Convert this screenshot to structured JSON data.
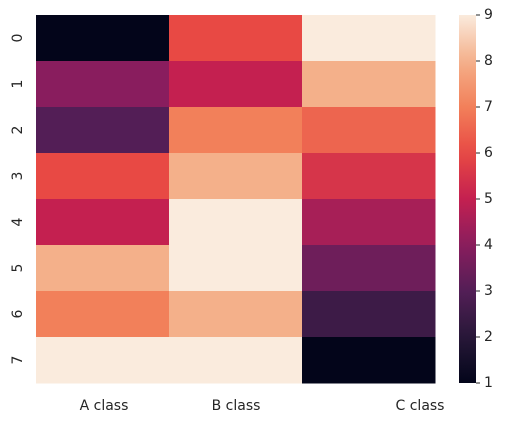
{
  "chart_data": {
    "type": "heatmap",
    "title": "",
    "xlabel": "",
    "ylabel": "",
    "x_categories": [
      "A class",
      "B class",
      "C class"
    ],
    "y_categories": [
      "0",
      "1",
      "2",
      "3",
      "4",
      "5",
      "6",
      "7"
    ],
    "values": [
      [
        1,
        6,
        9
      ],
      [
        4,
        5,
        8
      ],
      [
        3,
        7,
        6.5
      ],
      [
        6,
        8,
        5.5
      ],
      [
        5,
        9,
        4.5
      ],
      [
        8,
        9,
        3.5
      ],
      [
        7,
        8,
        2.5
      ],
      [
        9,
        9,
        1
      ]
    ],
    "colorbar": {
      "min": 1,
      "max": 9,
      "ticks": [
        "1",
        "2",
        "3",
        "4",
        "5",
        "6",
        "7",
        "8",
        "9"
      ],
      "colormap": "rocket"
    },
    "grid": false,
    "colors": {
      "tick_label": "#262626",
      "background": "#ffffff"
    }
  }
}
